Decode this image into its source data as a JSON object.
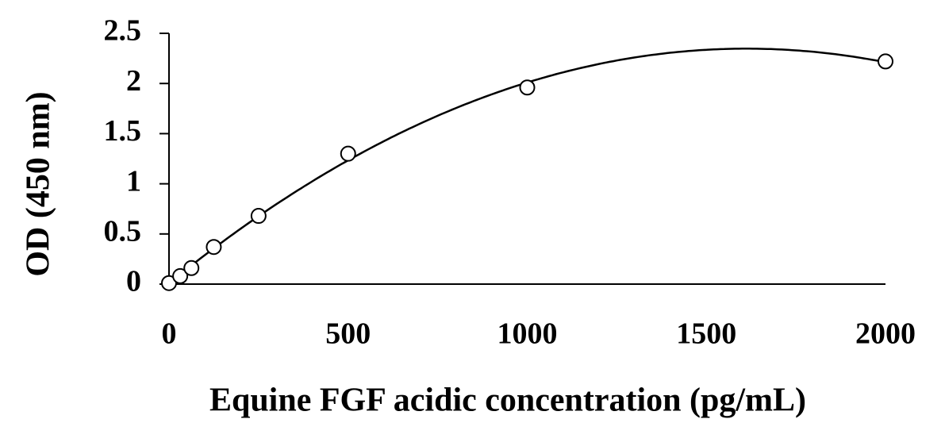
{
  "chart_data": {
    "type": "scatter",
    "x_label": "Equine FGF acidic concentration (pg/mL)",
    "y_label": "OD (450 nm)",
    "x": [
      0,
      31.25,
      62.5,
      125,
      250,
      500,
      1000,
      2000
    ],
    "values": [
      0.01,
      0.08,
      0.16,
      0.37,
      0.68,
      1.3,
      1.96,
      2.22
    ],
    "color": "#000000",
    "marker": "circle",
    "trendline": "polynomial",
    "xlim": [
      0,
      2000
    ],
    "xticks": [
      0,
      500,
      1000,
      1500,
      2000
    ],
    "ylim": [
      0,
      2.5
    ],
    "yticks": [
      0,
      0.5,
      1,
      1.5,
      2,
      2.5
    ],
    "grid": false
  }
}
